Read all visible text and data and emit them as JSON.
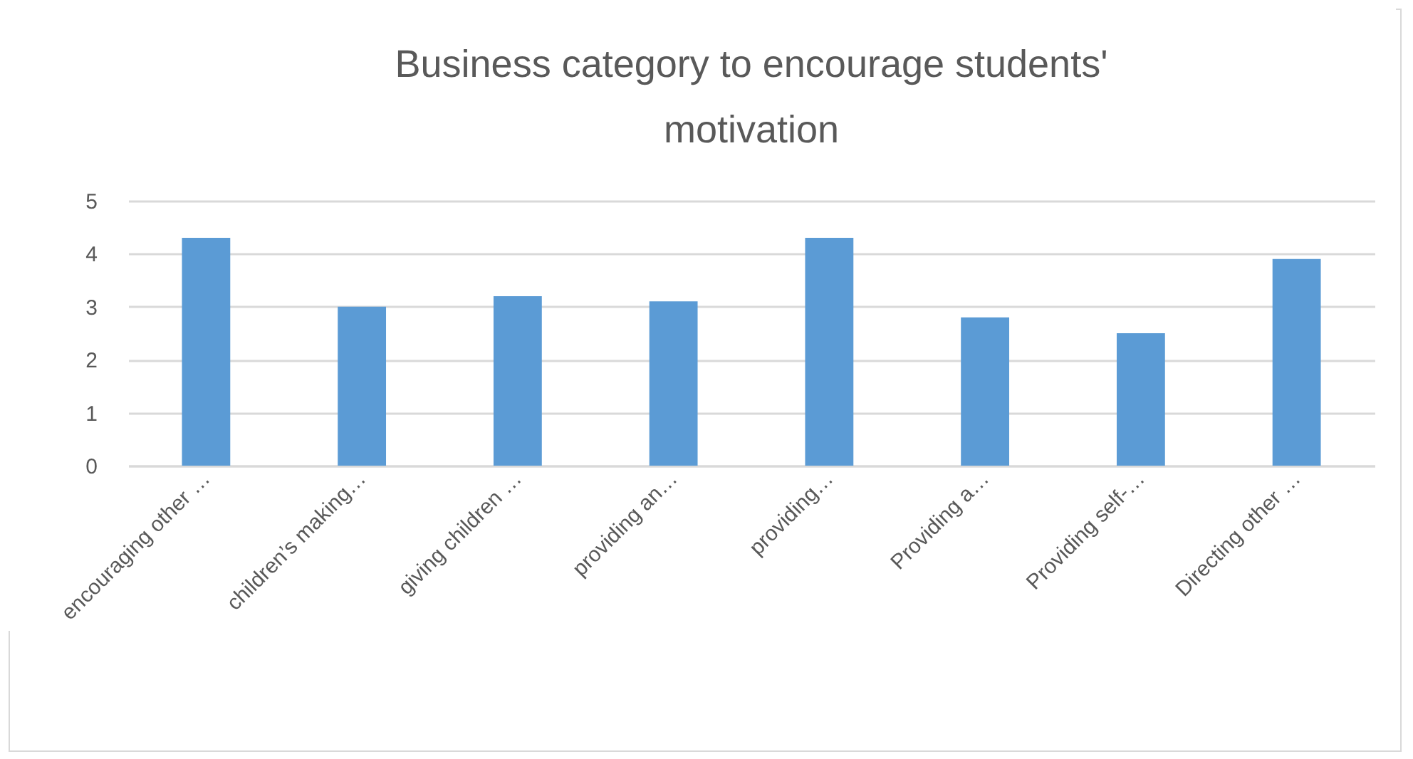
{
  "chart_data": {
    "type": "bar",
    "title": "Business category to encourage students' motivation",
    "categories": [
      "encouraging other …",
      "children’s making…",
      "giving children …",
      "providing an…",
      "providing…",
      "Providing a…",
      "Providing self-…",
      "Directing other …"
    ],
    "values": [
      4.3,
      3.0,
      3.2,
      3.1,
      4.3,
      2.8,
      2.5,
      3.9
    ],
    "color": "#5b9bd5",
    "ylim": [
      0,
      5
    ],
    "yticks": [
      0,
      1,
      2,
      3,
      4,
      5
    ],
    "grid": "y"
  }
}
